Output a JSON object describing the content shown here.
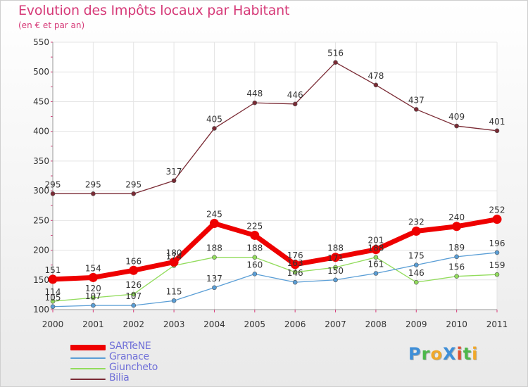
{
  "title": "Evolution des Impôts locaux par Habitant",
  "subtitle": "(en € et par an)",
  "logo": {
    "text": "ProXiti",
    "letter_colors": [
      "#3f8fd8",
      "#4db84a",
      "#f0a82a",
      "#3f8fd8",
      "#e05030",
      "#4db84a",
      "#f0a82a"
    ]
  },
  "chart_data": {
    "type": "line",
    "x": [
      "2000",
      "2001",
      "2002",
      "2003",
      "2004",
      "2005",
      "2006",
      "2007",
      "2008",
      "2009",
      "2010",
      "2011"
    ],
    "ylim": [
      100,
      550
    ],
    "yticks": [
      100,
      150,
      200,
      250,
      300,
      350,
      400,
      450,
      500,
      550
    ],
    "grid": true,
    "legend_position": "bottom-left",
    "series": [
      {
        "name": "SARTeNE",
        "color": "#ee0000",
        "emphasis": true,
        "values": [
          151,
          154,
          166,
          180,
          245,
          225,
          176,
          188,
          201,
          232,
          240,
          252
        ]
      },
      {
        "name": "Granace",
        "color": "#5a9ed6",
        "values": [
          105,
          107,
          107,
          115,
          137,
          160,
          146,
          150,
          161,
          175,
          189,
          196
        ],
        "labels": [
          "105",
          "107",
          "107",
          "115",
          "137",
          "160",
          "146",
          "150",
          "161",
          "175",
          "189",
          "196"
        ]
      },
      {
        "name": "Giuncheto",
        "color": "#92dc5c",
        "values": [
          114,
          120,
          126,
          174,
          188,
          188,
          163,
          171,
          188,
          146,
          156,
          159
        ],
        "labels": [
          "114",
          "120",
          "126",
          "174",
          "188",
          "188",
          "163",
          "171",
          "188",
          "146",
          "156",
          "159"
        ]
      },
      {
        "name": "Bilia",
        "color": "#7a2a34",
        "values": [
          295,
          295,
          295,
          317,
          405,
          448,
          446,
          516,
          478,
          437,
          409,
          401
        ]
      }
    ]
  }
}
